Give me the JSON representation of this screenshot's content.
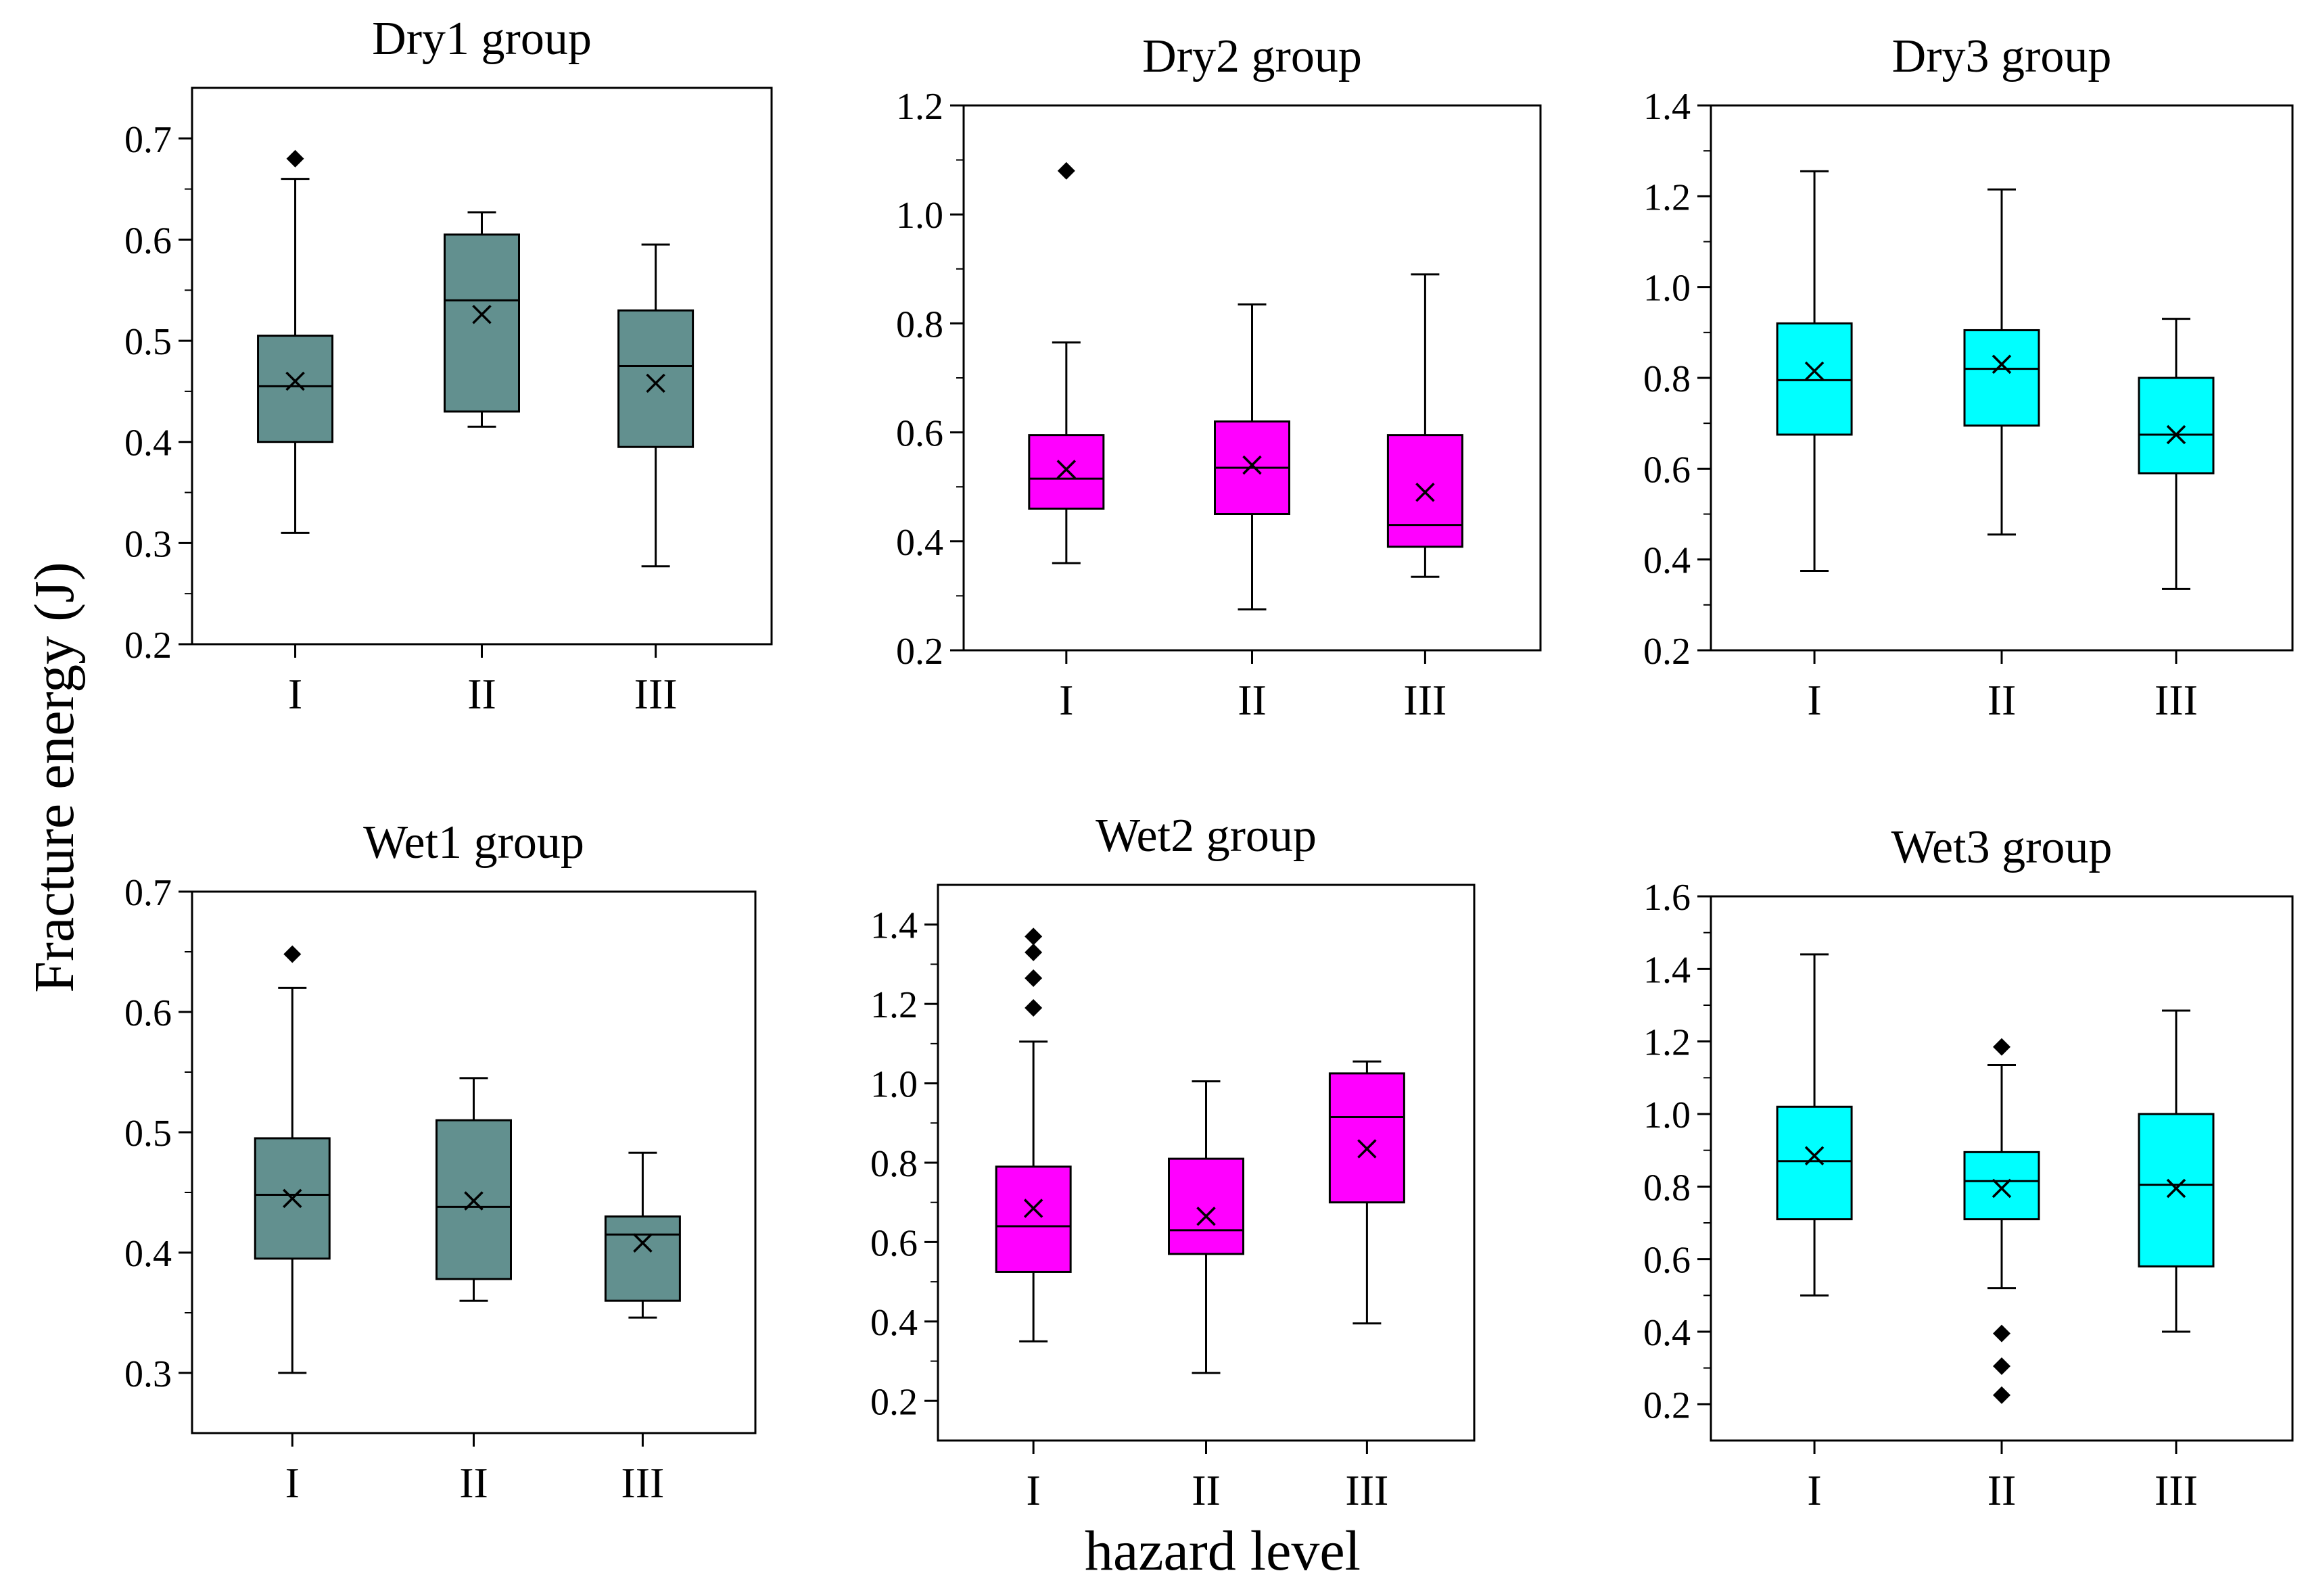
{
  "figure": {
    "ylabel": "Fracture energy (J)",
    "xlabel": "hazard level"
  },
  "chart_data": [
    {
      "type": "box",
      "title": "Dry1 group",
      "categories": [
        "I",
        "II",
        "III"
      ],
      "ylim": [
        0.2,
        0.75
      ],
      "yticks": [
        0.2,
        0.3,
        0.4,
        0.5,
        0.6,
        0.7
      ],
      "tick_format": 1,
      "color": "#62908f",
      "boxes": [
        {
          "min": 0.31,
          "q1": 0.4,
          "median": 0.455,
          "q3": 0.505,
          "max": 0.66,
          "mean": 0.46,
          "outliers": [
            0.68
          ]
        },
        {
          "min": 0.415,
          "q1": 0.43,
          "median": 0.54,
          "q3": 0.605,
          "max": 0.627,
          "mean": 0.526,
          "outliers": []
        },
        {
          "min": 0.277,
          "q1": 0.395,
          "median": 0.475,
          "q3": 0.53,
          "max": 0.595,
          "mean": 0.458,
          "outliers": []
        }
      ]
    },
    {
      "type": "box",
      "title": "Dry2 group",
      "categories": [
        "I",
        "II",
        "III"
      ],
      "ylim": [
        0.2,
        1.2
      ],
      "yticks": [
        0.2,
        0.4,
        0.6,
        0.8,
        1.0,
        1.2
      ],
      "tick_format": 1,
      "color": "#ff00ff",
      "boxes": [
        {
          "min": 0.36,
          "q1": 0.46,
          "median": 0.515,
          "q3": 0.595,
          "max": 0.765,
          "mean": 0.532,
          "outliers": [
            1.08
          ]
        },
        {
          "min": 0.275,
          "q1": 0.45,
          "median": 0.535,
          "q3": 0.62,
          "max": 0.835,
          "mean": 0.54,
          "outliers": []
        },
        {
          "min": 0.335,
          "q1": 0.39,
          "median": 0.43,
          "q3": 0.595,
          "max": 0.89,
          "mean": 0.49,
          "outliers": []
        }
      ]
    },
    {
      "type": "box",
      "title": "Dry3 group",
      "categories": [
        "I",
        "II",
        "III"
      ],
      "ylim": [
        0.2,
        1.4
      ],
      "yticks": [
        0.2,
        0.4,
        0.6,
        0.8,
        1.0,
        1.2,
        1.4
      ],
      "tick_format": 1,
      "color": "#00ffff",
      "boxes": [
        {
          "min": 0.375,
          "q1": 0.675,
          "median": 0.795,
          "q3": 0.92,
          "max": 1.255,
          "mean": 0.815,
          "outliers": []
        },
        {
          "min": 0.455,
          "q1": 0.695,
          "median": 0.82,
          "q3": 0.905,
          "max": 1.215,
          "mean": 0.83,
          "outliers": []
        },
        {
          "min": 0.335,
          "q1": 0.59,
          "median": 0.675,
          "q3": 0.8,
          "max": 0.93,
          "mean": 0.675,
          "outliers": []
        }
      ]
    },
    {
      "type": "box",
      "title": "Wet1 group",
      "categories": [
        "I",
        "II",
        "III"
      ],
      "ylim": [
        0.25,
        0.7
      ],
      "yticks": [
        0.3,
        0.4,
        0.5,
        0.6,
        0.7
      ],
      "tick_format": 1,
      "color": "#62908f",
      "boxes": [
        {
          "min": 0.3,
          "q1": 0.395,
          "median": 0.448,
          "q3": 0.495,
          "max": 0.62,
          "mean": 0.445,
          "outliers": [
            0.648
          ]
        },
        {
          "min": 0.36,
          "q1": 0.378,
          "median": 0.438,
          "q3": 0.51,
          "max": 0.545,
          "mean": 0.443,
          "outliers": []
        },
        {
          "min": 0.346,
          "q1": 0.36,
          "median": 0.415,
          "q3": 0.43,
          "max": 0.483,
          "mean": 0.408,
          "outliers": []
        }
      ]
    },
    {
      "type": "box",
      "title": "Wet2 group",
      "categories": [
        "I",
        "II",
        "III"
      ],
      "ylim": [
        0.1,
        1.5
      ],
      "yticks": [
        0.2,
        0.4,
        0.6,
        0.8,
        1.0,
        1.2,
        1.4
      ],
      "tick_format": 1,
      "color": "#ff00ff",
      "boxes": [
        {
          "min": 0.35,
          "q1": 0.525,
          "median": 0.64,
          "q3": 0.79,
          "max": 1.105,
          "mean": 0.685,
          "outliers": [
            1.19,
            1.265,
            1.33,
            1.37
          ]
        },
        {
          "min": 0.27,
          "q1": 0.57,
          "median": 0.63,
          "q3": 0.81,
          "max": 1.005,
          "mean": 0.665,
          "outliers": []
        },
        {
          "min": 0.395,
          "q1": 0.7,
          "median": 0.915,
          "q3": 1.025,
          "max": 1.055,
          "mean": 0.835,
          "outliers": []
        }
      ]
    },
    {
      "type": "box",
      "title": "Wet3 group",
      "categories": [
        "I",
        "II",
        "III"
      ],
      "ylim": [
        0.1,
        1.6
      ],
      "yticks": [
        0.2,
        0.4,
        0.6,
        0.8,
        1.0,
        1.2,
        1.4,
        1.6
      ],
      "tick_format": 1,
      "color": "#00ffff",
      "boxes": [
        {
          "min": 0.5,
          "q1": 0.71,
          "median": 0.87,
          "q3": 1.02,
          "max": 1.44,
          "mean": 0.885,
          "outliers": []
        },
        {
          "min": 0.52,
          "q1": 0.71,
          "median": 0.815,
          "q3": 0.895,
          "max": 1.135,
          "mean": 0.795,
          "outliers": [
            1.185,
            0.395,
            0.305,
            0.225
          ]
        },
        {
          "min": 0.4,
          "q1": 0.58,
          "median": 0.805,
          "q3": 1.0,
          "max": 1.285,
          "mean": 0.795,
          "outliers": []
        }
      ]
    }
  ]
}
